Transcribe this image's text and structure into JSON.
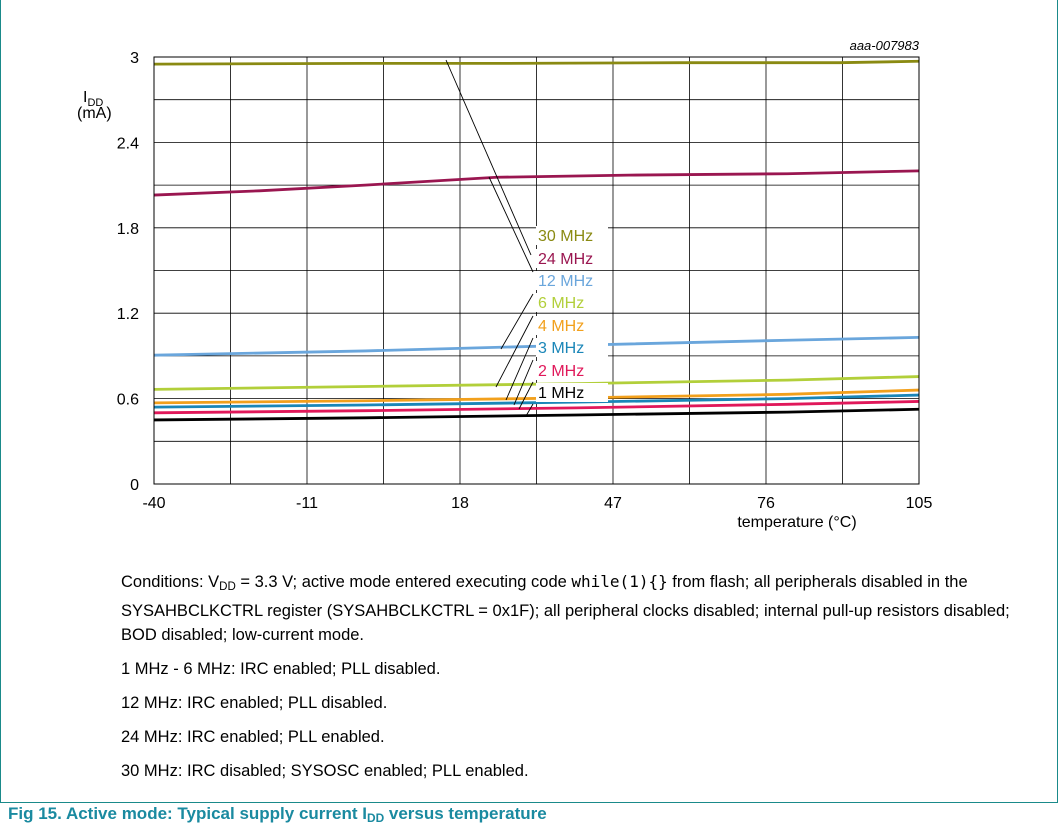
{
  "chart_data": {
    "type": "line",
    "code": "aaa-007983",
    "ylabel_main": "I",
    "ylabel_sub": "DD",
    "ylabel_unit": "(mA)",
    "xlabel": "temperature (°C)",
    "xlim": [
      -40,
      105
    ],
    "ylim": [
      0,
      3
    ],
    "xticks": [
      -40,
      -11,
      18,
      47,
      76,
      105
    ],
    "xtick_labels": [
      "-40",
      "-11",
      "18",
      "47",
      "76",
      "105"
    ],
    "yticks": [
      0,
      0.6,
      1.2,
      1.8,
      2.4,
      3
    ],
    "ytick_labels": [
      "0",
      "0.6",
      "1.2",
      "1.8",
      "2.4",
      "3"
    ],
    "grid": true,
    "series": [
      {
        "name": "30 MHz",
        "color": "#8a8a12",
        "x": [
          -40,
          0,
          25,
          60,
          90,
          105
        ],
        "y": [
          2.95,
          2.955,
          2.955,
          2.96,
          2.96,
          2.97
        ]
      },
      {
        "name": "24 MHz",
        "color": "#9a1650",
        "x": [
          -40,
          -20,
          0,
          25,
          50,
          80,
          105
        ],
        "y": [
          2.03,
          2.06,
          2.1,
          2.155,
          2.17,
          2.18,
          2.2
        ]
      },
      {
        "name": "12 MHz",
        "color": "#6aa6dc",
        "x": [
          -40,
          0,
          40,
          80,
          105
        ],
        "y": [
          0.905,
          0.935,
          0.975,
          1.01,
          1.03
        ]
      },
      {
        "name": "6 MHz",
        "color": "#b2cf3a",
        "x": [
          -40,
          0,
          40,
          80,
          105
        ],
        "y": [
          0.665,
          0.685,
          0.705,
          0.73,
          0.755
        ]
      },
      {
        "name": "4 MHz",
        "color": "#f2a01c",
        "x": [
          -40,
          0,
          40,
          80,
          105
        ],
        "y": [
          0.57,
          0.585,
          0.605,
          0.63,
          0.66
        ]
      },
      {
        "name": "3 MHz",
        "color": "#1a86b8",
        "x": [
          -40,
          0,
          40,
          80,
          105
        ],
        "y": [
          0.54,
          0.555,
          0.575,
          0.6,
          0.625
        ]
      },
      {
        "name": "2 MHz",
        "color": "#e0185a",
        "x": [
          -40,
          0,
          40,
          80,
          105
        ],
        "y": [
          0.5,
          0.515,
          0.535,
          0.56,
          0.58
        ]
      },
      {
        "name": "1 MHz",
        "color": "#000000",
        "x": [
          -40,
          0,
          40,
          80,
          105
        ],
        "y": [
          0.45,
          0.465,
          0.485,
          0.505,
          0.525
        ]
      }
    ]
  },
  "notes": {
    "conditions_prefix": "Conditions: V",
    "conditions_sub": "DD",
    "conditions_mid": " = 3.3 V; active mode entered executing code ",
    "conditions_code": "while(1){}",
    "conditions_rest": " from flash; all peripherals disabled in the SYSAHBCLKCTRL register (SYSAHBCLKCTRL = 0x1F); all peripheral clocks disabled; internal pull-up resistors disabled; BOD disabled; low-current mode.",
    "line1": "1 MHz - 6 MHz: IRC enabled; PLL disabled.",
    "line2": "12 MHz: IRC enabled; PLL disabled.",
    "line3": "24 MHz: IRC enabled; PLL enabled.",
    "line4": "30 MHz: IRC disabled; SYSOSC enabled; PLL enabled."
  },
  "caption": {
    "prefix": "Fig 15.   Active mode: Typical supply current I",
    "sub": "DD",
    "suffix": " versus temperature"
  }
}
